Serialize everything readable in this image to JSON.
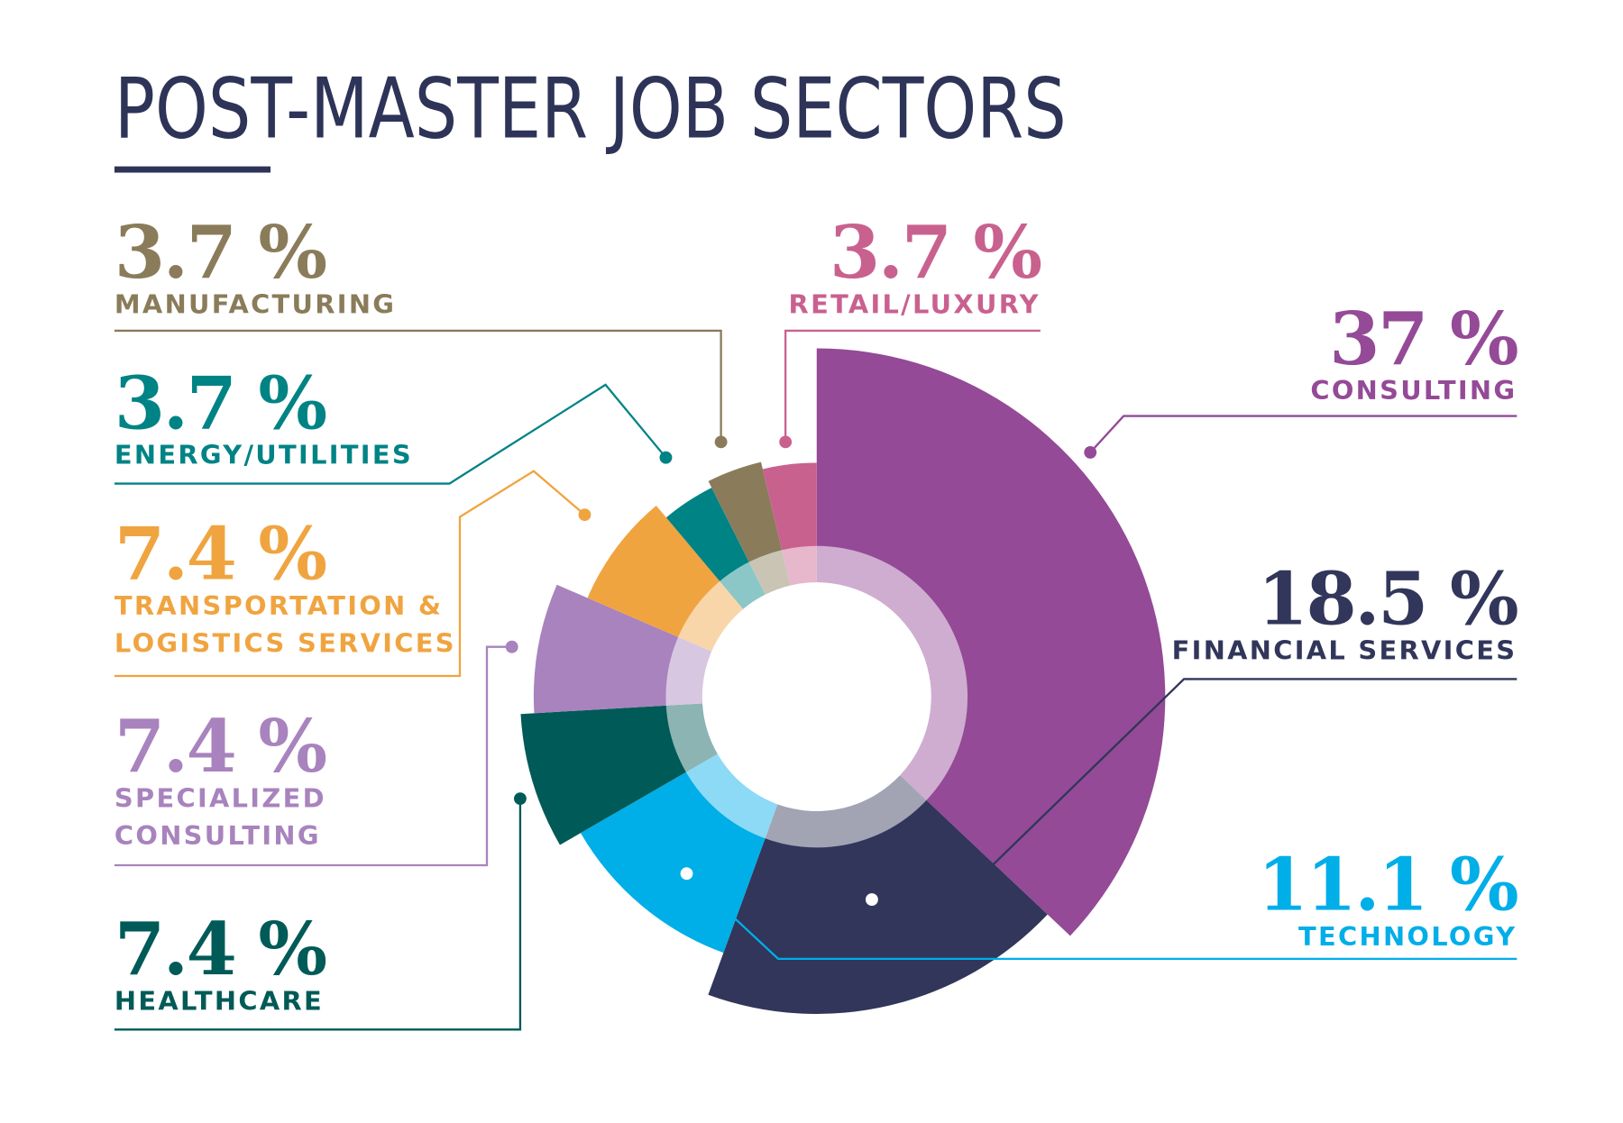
{
  "chart_data": {
    "type": "pie",
    "title": "POST-MASTER JOB SECTORS",
    "categories": [
      "CONSULTING",
      "FINANCIAL SERVICES",
      "TECHNOLOGY",
      "HEALTHCARE",
      "SPECIALIZED CONSULTING",
      "TRANSPORTATION & LOGISTICS SERVICES",
      "ENERGY/UTILITIES",
      "MANUFACTURING",
      "RETAIL/LUXURY"
    ],
    "values": [
      37,
      18.5,
      11.1,
      7.4,
      7.4,
      7.4,
      3.7,
      3.7,
      3.7
    ],
    "value_labels": [
      "37 %",
      "18.5 %",
      "11.1 %",
      "7.4 %",
      "7.4 %",
      "7.4 %",
      "3.7 %",
      "3.7 %",
      "3.7 %"
    ],
    "colors": [
      "#944a97",
      "#31365a",
      "#00aee8",
      "#005a57",
      "#a883bd",
      "#f0a440",
      "#008385",
      "#8a7c5a",
      "#c9618f"
    ],
    "title_color": "#2e3358"
  }
}
